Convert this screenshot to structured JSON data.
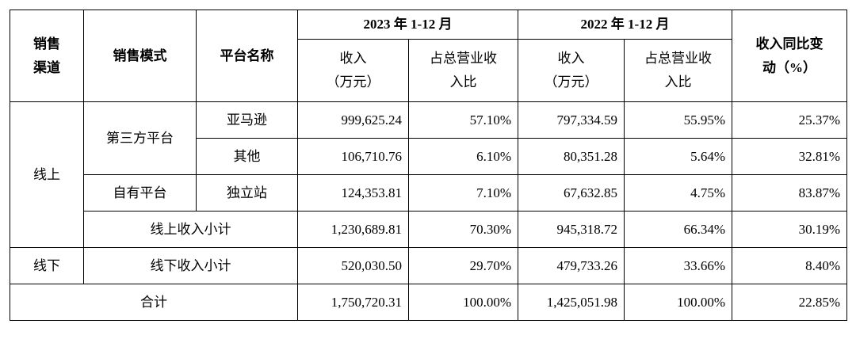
{
  "table": {
    "header": {
      "channel": [
        "销售",
        "渠道"
      ],
      "mode": "销售模式",
      "platform": "平台名称",
      "years": [
        "2023 年 1-12 月",
        "2022 年 1-12 月"
      ],
      "subheaders": [
        [
          "收入",
          "（万元）"
        ],
        [
          "占总营业收",
          "入比"
        ],
        [
          "收入",
          "（万元）"
        ],
        [
          "占总营业收",
          "入比"
        ]
      ],
      "yoy": [
        "收入同比变",
        "动（%）"
      ]
    },
    "rows": [
      {
        "channel": "线上",
        "mode": "第三方平台",
        "platform": "亚马逊",
        "cells": [
          "999,625.24",
          "57.10%",
          "797,334.59",
          "55.95%",
          "25.37%"
        ]
      },
      {
        "platform": "其他",
        "cells": [
          "106,710.76",
          "6.10%",
          "80,351.28",
          "5.64%",
          "32.81%"
        ]
      },
      {
        "mode": "自有平台",
        "platform": "独立站",
        "cells": [
          "124,353.81",
          "7.10%",
          "67,632.85",
          "4.75%",
          "83.87%"
        ]
      },
      {
        "label": "线上收入小计",
        "cells": [
          "1,230,689.81",
          "70.30%",
          "945,318.72",
          "66.34%",
          "30.19%"
        ]
      },
      {
        "channel": "线下",
        "label": "线下收入小计",
        "cells": [
          "520,030.50",
          "29.70%",
          "479,733.26",
          "33.66%",
          "8.40%"
        ]
      },
      {
        "label": "合计",
        "cells": [
          "1,750,720.31",
          "100.00%",
          "1,425,051.98",
          "100.00%",
          "22.85%"
        ]
      }
    ]
  }
}
